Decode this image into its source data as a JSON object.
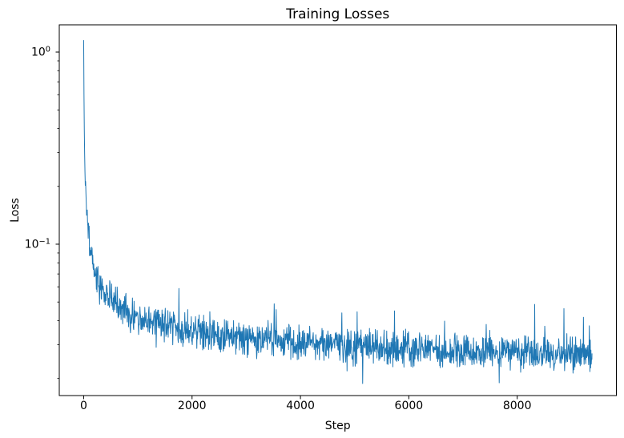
{
  "figure": {
    "kind": "line-chart-figure",
    "background_color": "#ffffff",
    "plot_background_color": "#ffffff",
    "spine_color": "#000000",
    "tick_color": "#000000",
    "text_color": "#000000",
    "grid": false,
    "legend": "none"
  },
  "chart_data": {
    "type": "line",
    "title": "Training Losses",
    "xlabel": "Step",
    "ylabel": "Loss",
    "x_scale": "linear",
    "y_scale": "log",
    "xlim": [
      -450,
      9830
    ],
    "ylim": [
      0.0163,
      1.386
    ],
    "grid": false,
    "legend_position": "none",
    "x_ticks": [
      {
        "value": 0,
        "label": "0"
      },
      {
        "value": 2000,
        "label": "2000"
      },
      {
        "value": 4000,
        "label": "4000"
      },
      {
        "value": 6000,
        "label": "6000"
      },
      {
        "value": 8000,
        "label": "8000"
      }
    ],
    "y_ticks": [
      {
        "value": 1.0,
        "mantissa": "10",
        "exponent": "0",
        "label": "10^0"
      },
      {
        "value": 0.1,
        "mantissa": "10",
        "exponent": "−1",
        "label": "10^-1"
      }
    ],
    "y_minor_ticks": [
      0.9,
      0.8,
      0.7,
      0.6,
      0.5,
      0.4,
      0.3,
      0.2,
      0.09,
      0.08,
      0.07,
      0.06,
      0.05,
      0.04,
      0.03,
      0.02
    ],
    "series": [
      {
        "name": "training loss",
        "color": "#1f77b4",
        "line_width": 1,
        "x_start": 0,
        "x_end": 9380,
        "initial_loss": 1.15,
        "final_loss_approx": 0.027,
        "trend": [
          [
            0,
            1.15
          ],
          [
            6,
            0.6
          ],
          [
            14,
            0.34
          ],
          [
            25,
            0.23
          ],
          [
            40,
            0.175
          ],
          [
            60,
            0.14
          ],
          [
            85,
            0.118
          ],
          [
            110,
            0.103
          ],
          [
            140,
            0.092
          ],
          [
            180,
            0.08
          ],
          [
            230,
            0.07
          ],
          [
            290,
            0.062
          ],
          [
            360,
            0.0565
          ],
          [
            450,
            0.053
          ],
          [
            560,
            0.05
          ],
          [
            700,
            0.0465
          ],
          [
            850,
            0.0435
          ],
          [
            1000,
            0.0415
          ],
          [
            1200,
            0.0395
          ],
          [
            1450,
            0.0378
          ],
          [
            1700,
            0.0365
          ],
          [
            2000,
            0.0355
          ],
          [
            2400,
            0.0342
          ],
          [
            2800,
            0.0332
          ],
          [
            3200,
            0.0322
          ],
          [
            3600,
            0.0314
          ],
          [
            4000,
            0.0307
          ],
          [
            4500,
            0.03
          ],
          [
            5000,
            0.0294
          ],
          [
            5500,
            0.0289
          ],
          [
            6000,
            0.0285
          ],
          [
            6500,
            0.0281
          ],
          [
            7000,
            0.0278
          ],
          [
            7500,
            0.0276
          ],
          [
            8000,
            0.0274
          ],
          [
            8500,
            0.0272
          ],
          [
            9000,
            0.027
          ],
          [
            9380,
            0.0269
          ]
        ],
        "noise_band": {
          "rel_lower": 0.78,
          "rel_upper": 1.28,
          "spike_rel_up": 1.5,
          "spike_rel_down": 0.75,
          "spike_probability": 0.008,
          "clean_until_step": 24
        }
      }
    ]
  }
}
